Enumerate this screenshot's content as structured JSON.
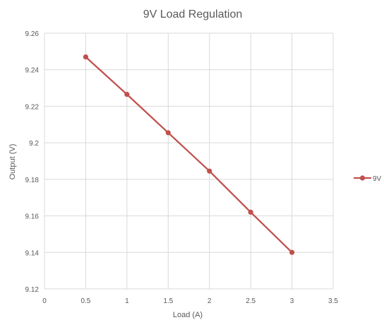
{
  "chart_data": {
    "type": "line",
    "title": "9V Load Regulation",
    "xlabel": "Load (A)",
    "ylabel": "Output (V)",
    "xlim": [
      0,
      3.5
    ],
    "ylim": [
      9.12,
      9.26
    ],
    "x_ticks": [
      "0",
      "0.5",
      "1",
      "1.5",
      "2",
      "2.5",
      "3",
      "3.5"
    ],
    "y_ticks": [
      "9.12",
      "9.14",
      "9.16",
      "9.18",
      "9.2",
      "9.22",
      "9.24",
      "9.26"
    ],
    "grid": true,
    "legend_position": "right",
    "series": [
      {
        "name": "9V",
        "color": "#c0504d",
        "x": [
          0.5,
          1.0,
          1.5,
          2.0,
          2.5,
          3.0
        ],
        "y": [
          9.247,
          9.2265,
          9.2055,
          9.1845,
          9.162,
          9.14
        ]
      }
    ]
  }
}
